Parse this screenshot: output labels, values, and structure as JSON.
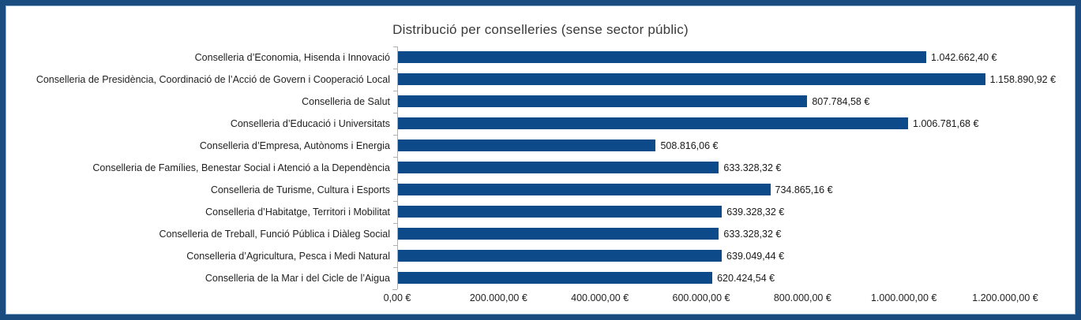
{
  "title": "Distribució per conselleries (sense sector públic)",
  "colors": {
    "bar": "#0d4a8a",
    "frame": "#1a4c80",
    "frame_inner_line": "#9db8d2",
    "axis": "#b0b0b0",
    "title_text": "#3a3a3a",
    "label_text": "#1f1f1f"
  },
  "chart_data": {
    "type": "bar",
    "orientation": "horizontal",
    "title": "Distribució per conselleries (sense sector públic)",
    "categories": [
      "Conselleria d’Economia, Hisenda i Innovació",
      "Conselleria de Presidència, Coordinació de l’Acció de Govern i Cooperació Local",
      "Conselleria de Salut",
      "Conselleria d’Educació i Universitats",
      "Conselleria d’Empresa, Autònoms i Energia",
      "Conselleria de Famílies, Benestar Social i Atenció a la Dependència",
      "Conselleria de Turisme, Cultura i Esports",
      "Conselleria d’Habitatge, Territori i Mobilitat",
      "Conselleria de Treball, Funció Pública i Diàleg Social",
      "Conselleria d’Agricultura, Pesca i Medi Natural",
      "Conselleria de la Mar i del Cicle de l’Aigua"
    ],
    "values": [
      1042662.4,
      1158890.92,
      807784.58,
      1006781.68,
      508816.06,
      633328.32,
      734865.16,
      639328.32,
      633328.32,
      639049.44,
      620424.54
    ],
    "value_labels": [
      "1.042.662,40 €",
      "1.158.890,92 €",
      "807.784,58 €",
      "1.006.781,68 €",
      "508.816,06 €",
      "633.328,32 €",
      "734.865,16 €",
      "639.328,32 €",
      "633.328,32 €",
      "639.049,44 €",
      "620.424,54 €"
    ],
    "x_ticks": [
      "0,00 €",
      "200.000,00 €",
      "400.000,00 €",
      "600.000,00 €",
      "800.000,00 €",
      "1.000.000,00 €",
      "1.200.000,00 €"
    ],
    "xlim": [
      0,
      1200000
    ],
    "xlabel": "",
    "ylabel": "",
    "grid": false,
    "legend": false,
    "unit": "€"
  }
}
